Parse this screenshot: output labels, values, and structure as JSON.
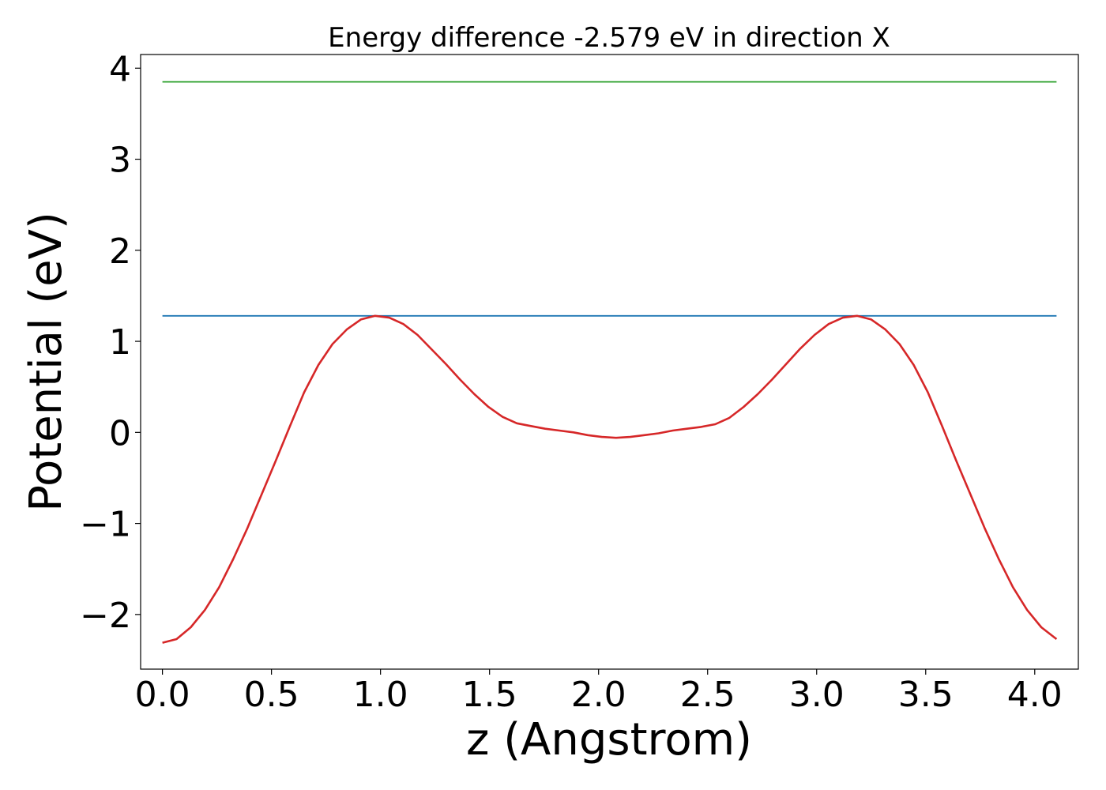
{
  "chart_data": {
    "type": "line",
    "title": "Energy difference -2.579 eV in direction X",
    "xlabel": "z (Angstrom)",
    "ylabel": "Potential (eV)",
    "xlim": [
      -0.1,
      4.2
    ],
    "ylim": [
      -2.6,
      4.15
    ],
    "xticks": [
      0.0,
      0.5,
      1.0,
      1.5,
      2.0,
      2.5,
      3.0,
      3.5,
      4.0
    ],
    "xtick_labels": [
      "0.0",
      "0.5",
      "1.0",
      "1.5",
      "2.0",
      "2.5",
      "3.0",
      "3.5",
      "4.0"
    ],
    "yticks": [
      -2,
      -1,
      0,
      1,
      2,
      3,
      4
    ],
    "ytick_labels": [
      "−2",
      "−1",
      "0",
      "1",
      "2",
      "3",
      "4"
    ],
    "grid": false,
    "legend": "none",
    "series": [
      {
        "color": "#2ca02c",
        "x": [
          0.0,
          4.1
        ],
        "y": [
          3.85,
          3.85
        ]
      },
      {
        "color": "#1f77b4",
        "x": [
          0.0,
          4.1
        ],
        "y": [
          1.28,
          1.28
        ]
      },
      {
        "color": "#d62728",
        "x": [
          0.0,
          0.065,
          0.13,
          0.195,
          0.26,
          0.325,
          0.39,
          0.455,
          0.52,
          0.585,
          0.65,
          0.715,
          0.78,
          0.845,
          0.91,
          0.975,
          1.04,
          1.105,
          1.17,
          1.235,
          1.3,
          1.365,
          1.43,
          1.495,
          1.56,
          1.625,
          1.69,
          1.755,
          1.82,
          1.885,
          1.95,
          2.015,
          2.08,
          2.145,
          2.21,
          2.275,
          2.34,
          2.405,
          2.47,
          2.535,
          2.6,
          2.665,
          2.73,
          2.795,
          2.86,
          2.925,
          2.99,
          3.055,
          3.12,
          3.185,
          3.25,
          3.315,
          3.38,
          3.445,
          3.51,
          3.575,
          3.64,
          3.705,
          3.77,
          3.835,
          3.9,
          3.965,
          4.03,
          4.1
        ],
        "y": [
          -2.31,
          -2.27,
          -2.14,
          -1.95,
          -1.7,
          -1.39,
          -1.05,
          -0.68,
          -0.31,
          0.07,
          0.44,
          0.74,
          0.97,
          1.13,
          1.24,
          1.28,
          1.26,
          1.19,
          1.07,
          0.91,
          0.75,
          0.58,
          0.42,
          0.28,
          0.17,
          0.1,
          0.07,
          0.04,
          0.02,
          0.0,
          -0.03,
          -0.05,
          -0.06,
          -0.05,
          -0.03,
          -0.01,
          0.02,
          0.04,
          0.06,
          0.09,
          0.16,
          0.28,
          0.42,
          0.58,
          0.75,
          0.92,
          1.07,
          1.19,
          1.26,
          1.28,
          1.24,
          1.13,
          0.97,
          0.74,
          0.44,
          0.07,
          -0.31,
          -0.68,
          -1.05,
          -1.39,
          -1.7,
          -1.95,
          -2.14,
          -2.27
        ]
      }
    ]
  }
}
